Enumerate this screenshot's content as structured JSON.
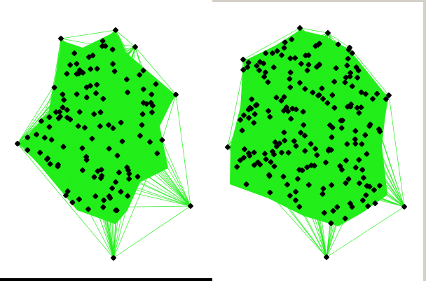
{
  "colors": {
    "edge": "#22ee1a",
    "fill": "#22ee1a",
    "node": "#000000",
    "background": "#ffffff",
    "window": "#d4d0c8"
  },
  "graphs": [
    {
      "name": "left-graph",
      "hull_nodes": 10,
      "interior_nodes": 110
    },
    {
      "name": "right-graph",
      "hull_nodes": 10,
      "interior_nodes": 190
    }
  ]
}
